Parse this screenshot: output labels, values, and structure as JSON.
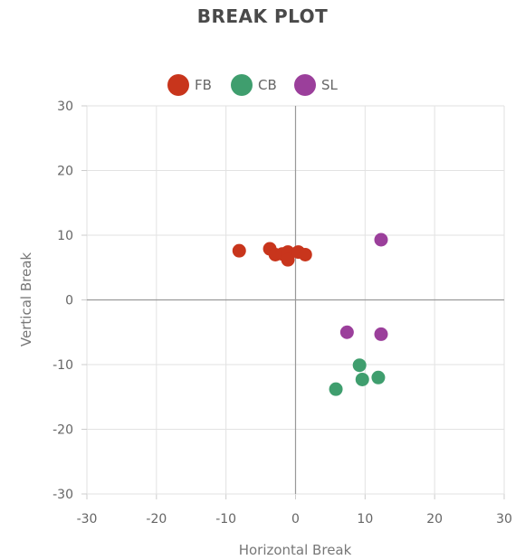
{
  "chart_data": {
    "type": "scatter",
    "title": "BREAK PLOT",
    "xlabel": "Horizontal Break",
    "ylabel": "Vertical Break",
    "xlim": [
      -30,
      30
    ],
    "ylim": [
      -30,
      30
    ],
    "xticks": [
      "-30",
      "-20",
      "-10",
      "0",
      "10",
      "20",
      "30"
    ],
    "yticks": [
      "30",
      "20",
      "10",
      "0",
      "-10",
      "-20",
      "-30"
    ],
    "grid": true,
    "legend_position": "top-center",
    "series": [
      {
        "name": "FB",
        "color": "#c8351c",
        "points": [
          [
            -8.1,
            7.6
          ],
          [
            -3.7,
            7.9
          ],
          [
            -2.9,
            7.0
          ],
          [
            -1.9,
            7.1
          ],
          [
            -1.1,
            7.4
          ],
          [
            -1.1,
            6.2
          ],
          [
            0.4,
            7.4
          ],
          [
            1.4,
            7.0
          ]
        ]
      },
      {
        "name": "CB",
        "color": "#3f9e6e",
        "points": [
          [
            5.8,
            -13.8
          ],
          [
            9.2,
            -10.1
          ],
          [
            9.6,
            -12.3
          ],
          [
            11.9,
            -12.0
          ]
        ]
      },
      {
        "name": "SL",
        "color": "#9b3f9b",
        "points": [
          [
            7.4,
            -5.0
          ],
          [
            12.3,
            9.3
          ],
          [
            12.3,
            -5.3
          ]
        ]
      }
    ]
  }
}
